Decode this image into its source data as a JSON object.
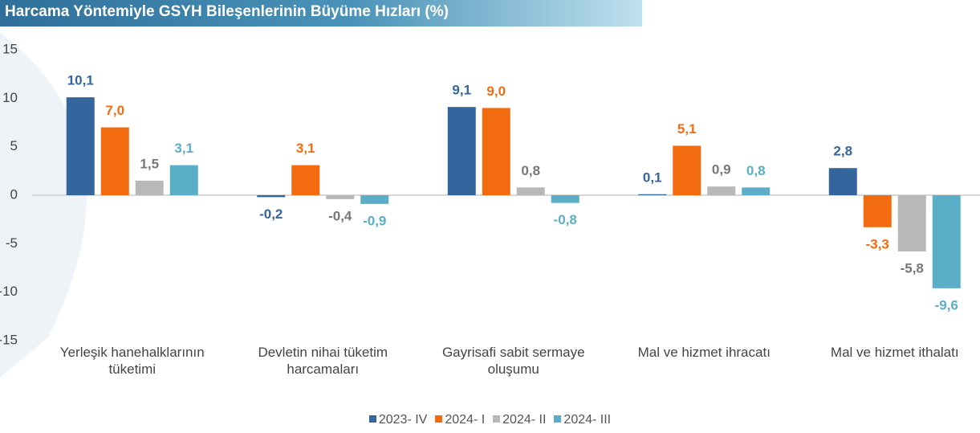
{
  "chart_data": {
    "type": "bar",
    "title": "Harcama Yöntemiyle GSYH Bileşenlerinin Büyüme Hızları (%)",
    "categories": [
      "Yerleşik hanehalklarının tüketimi",
      "Devletin nihai tüketim harcamaları",
      "Gayrisafi sabit sermaye oluşumu",
      "Mal ve hizmet ihracatı",
      "Mal ve hizmet ithalatı"
    ],
    "series": [
      {
        "name": "2023- IV",
        "color": "#34659c",
        "values": [
          10.1,
          -0.2,
          9.1,
          0.1,
          2.8
        ],
        "value_labels": [
          "10,1",
          "-0,2",
          "9,1",
          "0,1",
          "2,8"
        ]
      },
      {
        "name": "2024- I",
        "color": "#f26b0f",
        "values": [
          7.0,
          3.1,
          9.0,
          5.1,
          -3.3
        ],
        "value_labels": [
          "7,0",
          "3,1",
          "9,0",
          "5,1",
          "-3,3"
        ]
      },
      {
        "name": "2024- II",
        "color": "#b8b8b8",
        "values": [
          1.5,
          -0.4,
          0.8,
          0.9,
          -5.8
        ],
        "value_labels": [
          "1,5",
          "-0,4",
          "0,8",
          "0,9",
          "-5,8"
        ]
      },
      {
        "name": "2024- III",
        "color": "#5baec8",
        "values": [
          3.1,
          -0.9,
          -0.8,
          0.8,
          -9.6
        ],
        "value_labels": [
          "3,1",
          "-0,9",
          "-0,8",
          "0,8",
          "-9,6"
        ]
      }
    ],
    "ylim": [
      -15,
      15
    ],
    "yticks": [
      -15,
      -10,
      -5,
      0,
      5,
      10,
      15
    ],
    "grid": false
  }
}
